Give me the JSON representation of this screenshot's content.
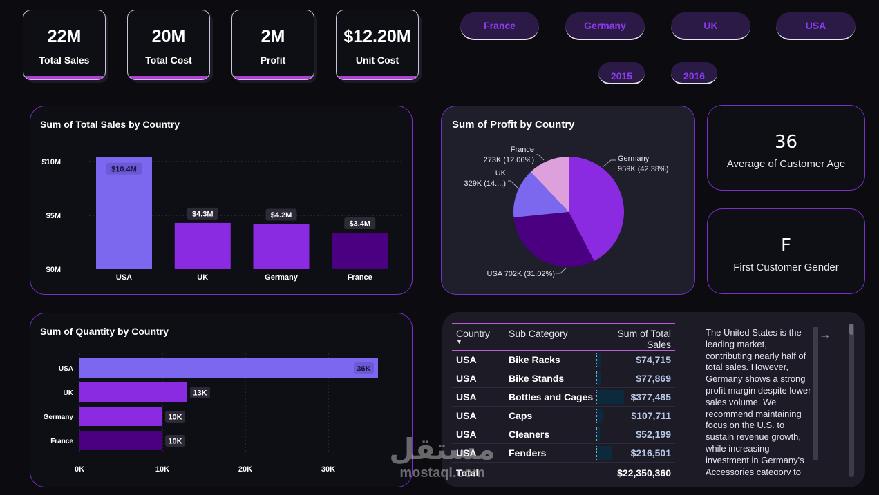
{
  "kpis": [
    {
      "value": "22M",
      "label": "Total Sales"
    },
    {
      "value": "20M",
      "label": "Total Cost"
    },
    {
      "value": "2M",
      "label": "Profit"
    },
    {
      "value": "$12.20M",
      "label": "Unit Cost"
    }
  ],
  "country_slicers": [
    "France",
    "Germany",
    "UK",
    "USA"
  ],
  "year_slicers": [
    "2015",
    "2016"
  ],
  "sales_chart": {
    "title": "Sum of Total Sales by Country",
    "chart_data": {
      "type": "bar",
      "categories": [
        "USA",
        "UK",
        "Germany",
        "France"
      ],
      "values": [
        10.4,
        4.3,
        4.2,
        3.4
      ],
      "data_labels": [
        "$10.4M",
        "$4.3M",
        "$4.2M",
        "$3.4M"
      ],
      "y_ticks": [
        "$0M",
        "$5M",
        "$10M"
      ],
      "ylim": [
        0,
        10
      ],
      "colors": [
        "#7b68ee",
        "#8a2be2",
        "#8a2be2",
        "#4b0082"
      ]
    }
  },
  "quantity_chart": {
    "title": "Sum of Quantity by Country",
    "chart_data": {
      "type": "bar",
      "orientation": "horizontal",
      "categories": [
        "USA",
        "UK",
        "Germany",
        "France"
      ],
      "values": [
        36,
        13,
        10,
        10
      ],
      "data_labels": [
        "36K",
        "13K",
        "10K",
        "10K"
      ],
      "x_ticks": [
        "0K",
        "10K",
        "20K",
        "30K"
      ],
      "xlim": [
        0,
        30
      ],
      "colors": [
        "#7b68ee",
        "#8a2be2",
        "#8a2be2",
        "#4b0082"
      ]
    }
  },
  "profit_chart": {
    "title": "Sum of Profit by Country",
    "chart_data": {
      "type": "pie",
      "slices": [
        {
          "label": "Germany",
          "value": 959,
          "pct": 42.38,
          "color": "#8a2be2",
          "text1": "Germany",
          "text2": "959K (42.38%)"
        },
        {
          "label": "USA",
          "value": 702,
          "pct": 31.02,
          "color": "#4b0082",
          "text1": "USA 702K (31.02%)",
          "text2": ""
        },
        {
          "label": "UK",
          "value": 329,
          "pct": 14.54,
          "color": "#7b68ee",
          "text1": "UK",
          "text2": "329K (14....)"
        },
        {
          "label": "France",
          "value": 273,
          "pct": 12.06,
          "color": "#dda0dd",
          "text1": "France",
          "text2": "273K (12.06%)"
        }
      ]
    }
  },
  "avg_age": {
    "value": "36",
    "label": "Average of Customer Age"
  },
  "first_gender": {
    "value": "F",
    "label": "First Customer Gender"
  },
  "table": {
    "headers": [
      "Country",
      "Sub Category",
      "Sum of Total Sales"
    ],
    "rows": [
      {
        "country": "USA",
        "sub": "Bike Racks",
        "sales": "$74,715",
        "bar": 0.05
      },
      {
        "country": "USA",
        "sub": "Bike Stands",
        "sales": "$77,869",
        "bar": 0.05
      },
      {
        "country": "USA",
        "sub": "Bottles and Cages",
        "sales": "$377,485",
        "bar": 0.35
      },
      {
        "country": "USA",
        "sub": "Caps",
        "sales": "$107,711",
        "bar": 0.08
      },
      {
        "country": "USA",
        "sub": "Cleaners",
        "sales": "$52,199",
        "bar": 0.04
      },
      {
        "country": "USA",
        "sub": "Fenders",
        "sales": "$216,501",
        "bar": 0.2
      }
    ],
    "total_label": "Total",
    "total_value": "$22,350,360"
  },
  "narrative": "The United States is the leading market, contributing nearly half of total sales. However, Germany shows a strong profit margin despite lower sales volume. We recommend maintaining focus on the U.S. to sustain revenue growth, while increasing investment in Germany's Accessories category to",
  "watermark": {
    "arabic": "مستقل",
    "latin": "mostaql.com"
  }
}
